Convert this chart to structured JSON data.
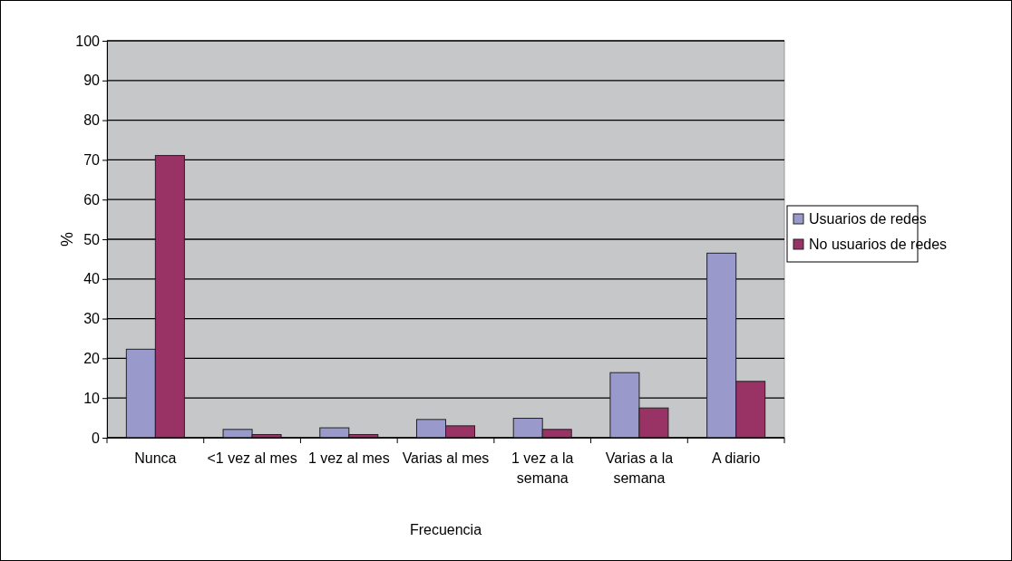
{
  "chart_data": {
    "type": "bar",
    "xlabel": "Frecuencia",
    "ylabel": "%",
    "categories": [
      "Nunca",
      "<1 vez al mes",
      "1 vez al mes",
      "Varias al mes",
      "1 vez a la semana",
      "Varias a la semana",
      "A diario"
    ],
    "series": [
      {
        "name": "Usuarios de redes",
        "color": "#9999cc",
        "values": [
          22.3,
          2.1,
          2.5,
          4.6,
          4.9,
          16.4,
          46.5
        ]
      },
      {
        "name": "No usuarios de redes",
        "color": "#993366",
        "values": [
          71.1,
          0.8,
          0.8,
          3.0,
          2.1,
          7.5,
          14.2
        ]
      }
    ],
    "ylim": [
      0,
      100
    ],
    "yticks": [
      0,
      10,
      20,
      30,
      40,
      50,
      60,
      70,
      80,
      90,
      100
    ],
    "grid": "y",
    "legend": "right"
  }
}
